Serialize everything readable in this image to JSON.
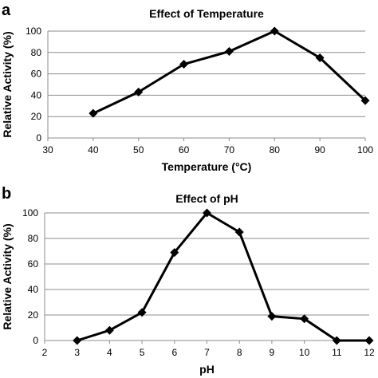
{
  "chart_data": [
    {
      "panel": "a",
      "type": "line",
      "title": "Effect of Temperature",
      "xlabel": "Temperature (°C)",
      "ylabel": "Relative Activity (%)",
      "xlim": [
        30,
        100
      ],
      "ylim": [
        0,
        100
      ],
      "xticks": [
        30,
        40,
        50,
        60,
        70,
        80,
        90,
        100
      ],
      "yticks": [
        0,
        20,
        40,
        60,
        80,
        100
      ],
      "grid": "horizontal",
      "marker": "diamond",
      "series_color": "#000000",
      "x": [
        40,
        50,
        60,
        70,
        80,
        90,
        100
      ],
      "y": [
        23,
        43,
        69,
        81,
        100,
        75,
        35
      ]
    },
    {
      "panel": "b",
      "type": "line",
      "title": "Effect of pH",
      "xlabel": "pH",
      "ylabel": "Relative Activity (%)",
      "xlim": [
        2,
        12
      ],
      "ylim": [
        0,
        100
      ],
      "xticks": [
        2,
        3,
        4,
        5,
        6,
        7,
        8,
        9,
        10,
        11,
        12
      ],
      "yticks": [
        0,
        20,
        40,
        60,
        80,
        100
      ],
      "grid": "horizontal",
      "marker": "diamond",
      "series_color": "#000000",
      "x": [
        3,
        4,
        5,
        6,
        7,
        8,
        9,
        10,
        11,
        12
      ],
      "y": [
        0,
        8,
        22,
        69,
        100,
        85,
        19,
        17,
        0,
        0
      ]
    }
  ]
}
